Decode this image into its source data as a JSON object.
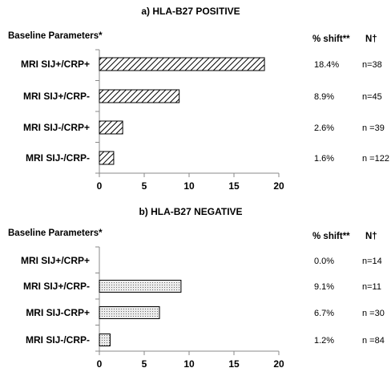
{
  "chart_data": [
    {
      "type": "bar",
      "orientation": "horizontal",
      "title": "a) HLA-B27 POSITIVE",
      "ylabel": "Baseline Parameters*",
      "shift_header": "% shift**",
      "n_header": "N†",
      "categories": [
        "MRI SIJ+/CRP+",
        "MRI SIJ+/CRP-",
        "MRI SIJ-/CRP+",
        "MRI SIJ-/CRP-"
      ],
      "values": [
        18.4,
        8.9,
        2.6,
        1.6
      ],
      "shift_labels": [
        "18.4%",
        "8.9%",
        "2.6%",
        "1.6%"
      ],
      "n_labels": [
        "n=38",
        "n=45",
        "n =39",
        "n =122"
      ],
      "xlim": [
        0,
        20
      ],
      "xticks": [
        0,
        5,
        10,
        15,
        20
      ],
      "fill_pattern": "diagonal-hatch",
      "grid": false
    },
    {
      "type": "bar",
      "orientation": "horizontal",
      "title": "b) HLA-B27 NEGATIVE",
      "ylabel": "Baseline Parameters*",
      "shift_header": "% shift**",
      "n_header": "N†",
      "categories": [
        "MRI SIJ+/CRP+",
        "MRI SIJ+/CRP-",
        "MRI SIJ-CRP+",
        "MRI SIJ-/CRP-"
      ],
      "values": [
        0.0,
        9.1,
        6.7,
        1.2
      ],
      "shift_labels": [
        "0.0%",
        "9.1%",
        "6.7%",
        "1.2%"
      ],
      "n_labels": [
        "n=14",
        "n=11",
        "n =30",
        "n =84"
      ],
      "xlim": [
        0,
        20
      ],
      "xticks": [
        0,
        5,
        10,
        15,
        20
      ],
      "fill_pattern": "dots",
      "grid": false
    }
  ]
}
